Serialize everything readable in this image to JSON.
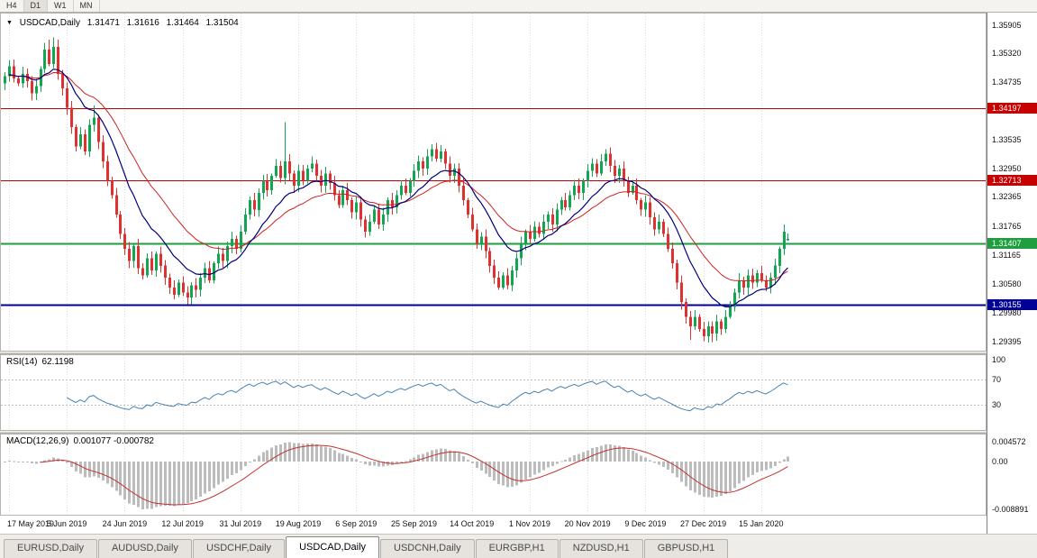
{
  "toolbar": {
    "timeframes": [
      "H4",
      "D1",
      "W1",
      "MN"
    ],
    "active": "D1"
  },
  "chart_title": {
    "symbol_period": "USDCAD,Daily",
    "open": "1.31471",
    "high": "1.31616",
    "low": "1.31464",
    "close": "1.31504"
  },
  "price_axis_ticks": [
    "1.35905",
    "1.35320",
    "1.34735",
    "1.33535",
    "1.32950",
    "1.32365",
    "1.31765",
    "1.31165",
    "1.30580",
    "1.29980",
    "1.29395"
  ],
  "hlines": [
    {
      "price": 1.34197,
      "label": "1.34197",
      "color": "#c60000"
    },
    {
      "price": 1.32713,
      "label": "1.32713",
      "color": "#c60000"
    },
    {
      "price": 1.31407,
      "label": "1.31407",
      "color": "#1e9e3e"
    },
    {
      "price": 1.30155,
      "label": "1.30155",
      "color": "#000096"
    }
  ],
  "rsi": {
    "title_name": "RSI(14)",
    "title_value": "62.1198",
    "axis_labels": [
      "100",
      "70",
      "30"
    ],
    "levels": [
      70,
      30
    ],
    "color": "#4682b4"
  },
  "macd": {
    "title_name": "MACD(12,26,9)",
    "title_values": "0.001077 -0.000782",
    "axis_top": "0.004572",
    "axis_zero": "0.00",
    "axis_bottom": "-0.008891",
    "hist_color": "#bcbcbc",
    "signal_color": "#c62f2f"
  },
  "tabs": [
    "EURUSD,Daily",
    "AUDUSD,Daily",
    "USDCHF,Daily",
    "USDCAD,Daily",
    "USDCNH,Daily",
    "EURGBP,H1",
    "NZDUSD,H1",
    "GBPUSD,H1"
  ],
  "active_tab": "USDCAD,Daily",
  "colors": {
    "candle_up": "#12a653",
    "candle_down": "#e03131",
    "ma_fast": "#000080",
    "ma_slow": "#cc2222",
    "grid": "#dcdcdc"
  },
  "chart_data": {
    "type": "candlestick",
    "symbol": "USDCAD",
    "timeframe": "Daily",
    "y_axis": {
      "min": 1.2922,
      "max": 1.3612
    },
    "x_axis": {
      "tick_indices": [
        1,
        14,
        27,
        40,
        53,
        66,
        79,
        92,
        105,
        118,
        131,
        144,
        157,
        170
      ],
      "tick_labels": [
        "17 May 2019",
        "5 Jun 2019",
        "24 Jun 2019",
        "12 Jul 2019",
        "31 Jul 2019",
        "19 Aug 2019",
        "6 Sep 2019",
        "25 Sep 2019",
        "14 Oct 2019",
        "1 Nov 2019",
        "20 Nov 2019",
        "9 Dec 2019",
        "27 Dec 2019",
        "15 Jan 2020"
      ]
    },
    "closes": [
      1.3485,
      1.3505,
      1.348,
      1.347,
      1.349,
      1.3475,
      1.345,
      1.3465,
      1.35,
      1.354,
      1.351,
      1.3545,
      1.349,
      1.346,
      1.342,
      1.338,
      1.334,
      1.3365,
      1.333,
      1.3385,
      1.34,
      1.335,
      1.331,
      1.327,
      1.324,
      1.32,
      1.316,
      1.313,
      1.3105,
      1.3135,
      1.309,
      1.3075,
      1.311,
      1.3085,
      1.312,
      1.3095,
      1.307,
      1.305,
      1.3035,
      1.306,
      1.304,
      1.303,
      1.3055,
      1.3045,
      1.307,
      1.309,
      1.3065,
      1.31,
      1.312,
      1.3105,
      1.3135,
      1.315,
      1.313,
      1.3165,
      1.32,
      1.323,
      1.321,
      1.3245,
      1.327,
      1.325,
      1.328,
      1.33,
      1.3275,
      1.331,
      1.3285,
      1.326,
      1.329,
      1.327,
      1.3295,
      1.3305,
      1.328,
      1.326,
      1.3285,
      1.3265,
      1.324,
      1.322,
      1.325,
      1.323,
      1.3205,
      1.3225,
      1.319,
      1.3165,
      1.3185,
      1.321,
      1.318,
      1.32,
      1.323,
      1.3215,
      1.324,
      1.326,
      1.3245,
      1.327,
      1.329,
      1.331,
      1.3295,
      1.332,
      1.3335,
      1.3315,
      1.333,
      1.3305,
      1.328,
      1.3295,
      1.326,
      1.323,
      1.32,
      1.317,
      1.314,
      1.3155,
      1.3125,
      1.3095,
      1.307,
      1.305,
      1.3075,
      1.3055,
      1.3085,
      1.311,
      1.314,
      1.3165,
      1.315,
      1.3175,
      1.316,
      1.3185,
      1.32,
      1.318,
      1.321,
      1.323,
      1.3215,
      1.324,
      1.326,
      1.3245,
      1.327,
      1.329,
      1.3305,
      1.3285,
      1.331,
      1.3325,
      1.33,
      1.328,
      1.3295,
      1.327,
      1.3245,
      1.326,
      1.323,
      1.321,
      1.3225,
      1.3195,
      1.317,
      1.3185,
      1.316,
      1.313,
      1.31,
      1.306,
      1.302,
      1.299,
      1.297,
      1.299,
      1.2965,
      1.295,
      1.297,
      1.2955,
      1.298,
      1.2965,
      1.299,
      1.301,
      1.304,
      1.3065,
      1.305,
      1.3075,
      1.306,
      1.308,
      1.3065,
      1.305,
      1.307,
      1.3095,
      1.313,
      1.3165,
      1.31504
    ],
    "wick_overrides": {
      "10": {
        "h": 1.356
      },
      "11": {
        "h": 1.3565
      },
      "20": {
        "h": 1.3425
      },
      "41": {
        "l": 1.3016
      },
      "63": {
        "h": 1.339
      },
      "96": {
        "h": 1.3345
      },
      "111": {
        "l": 1.3045
      },
      "135": {
        "h": 1.3335
      },
      "154": {
        "l": 1.2942
      },
      "159": {
        "l": 1.2938
      },
      "175": {
        "h": 1.318
      },
      "176": {
        "o": 1.31471,
        "h": 1.31616,
        "l": 1.31464
      }
    },
    "overlays": [
      {
        "type": "ema",
        "period": 13,
        "color": "#000080"
      },
      {
        "type": "ema",
        "period": 26,
        "color": "#cc2222"
      }
    ],
    "indicators": [
      {
        "type": "rsi",
        "period": 14,
        "last": 62.1198
      },
      {
        "type": "macd",
        "fast": 12,
        "slow": 26,
        "signal": 9,
        "last_main": 0.001077,
        "last_signal": -0.000782
      }
    ],
    "horizontal_lines": [
      1.34197,
      1.32713,
      1.31407,
      1.30155
    ]
  }
}
